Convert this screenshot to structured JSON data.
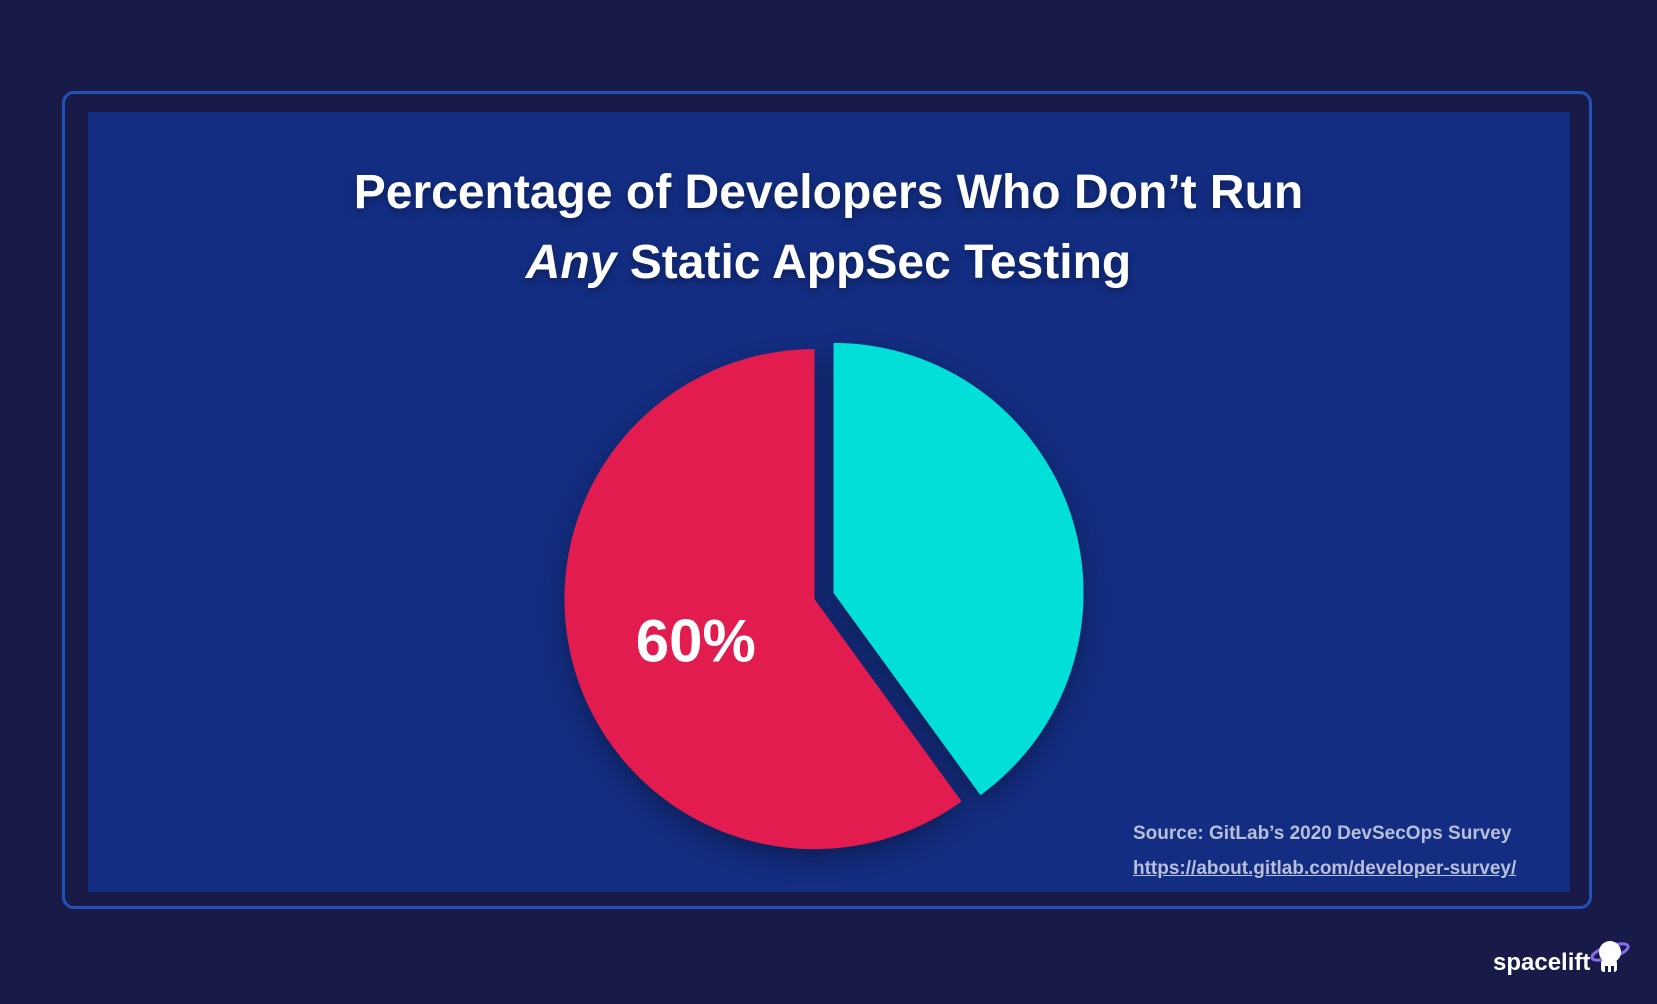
{
  "title_line1": "Percentage of Developers Who Don’t Run",
  "title_line2_em": "Any",
  "title_line2_rest": " Static AppSec Testing",
  "source": {
    "label": "Source:  GitLab’s 2020 DevSecOps Survey",
    "url": "https://about.gitlab.com/developer-survey/"
  },
  "brand": "spacelift",
  "colors": {
    "background": "#181a48",
    "panel": "#132d82",
    "frame": "#2352b6",
    "primary_slice": "#e31e4f",
    "secondary_slice": "#00e0d9"
  },
  "chart_data": {
    "type": "pie",
    "slices": [
      {
        "value": 60,
        "label": "60%",
        "color": "#e31e4f"
      },
      {
        "value": 40,
        "label": "",
        "color": "#00e0d9"
      }
    ]
  }
}
